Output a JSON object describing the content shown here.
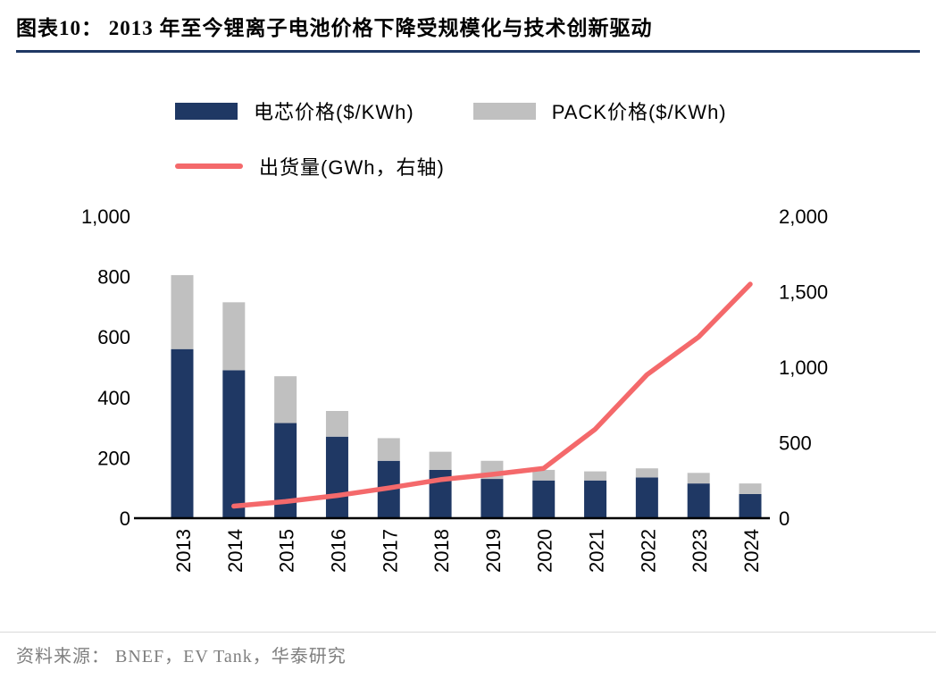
{
  "page": {
    "title": "图表10：  2013 年至今锂离子电池价格下降受规模化与技术创新驱动",
    "source": "资料来源： BNEF，EV Tank，华泰研究"
  },
  "chart_data": {
    "type": "bar",
    "subtype": "stacked-bars-with-line",
    "categories": [
      "2013",
      "2014",
      "2015",
      "2016",
      "2017",
      "2018",
      "2019",
      "2020",
      "2021",
      "2022",
      "2023",
      "2024"
    ],
    "series": [
      {
        "name": "电芯价格($/KWh)",
        "type": "bar",
        "axis": "left",
        "color": "#1f3864",
        "values": [
          560,
          490,
          315,
          270,
          190,
          160,
          130,
          125,
          125,
          135,
          115,
          80
        ]
      },
      {
        "name": "PACK价格($/KWh)",
        "type": "bar-stacked",
        "axis": "left",
        "color": "#c0c0c0",
        "values": [
          245,
          225,
          155,
          85,
          75,
          60,
          60,
          35,
          30,
          30,
          35,
          35
        ]
      },
      {
        "name": "出货量(GWh，右轴)",
        "type": "line",
        "axis": "right",
        "color": "#f4696b",
        "values": [
          null,
          80,
          110,
          150,
          200,
          255,
          290,
          330,
          590,
          950,
          1200,
          1550
        ]
      }
    ],
    "left_axis": {
      "min": 0,
      "max": 1000,
      "ticks": [
        "0",
        "200",
        "400",
        "600",
        "800",
        "1,000"
      ]
    },
    "right_axis": {
      "min": 0,
      "max": 2000,
      "ticks": [
        "0",
        "500",
        "1,000",
        "1,500",
        "2,000"
      ]
    },
    "grid": false,
    "legend_position": "top"
  }
}
